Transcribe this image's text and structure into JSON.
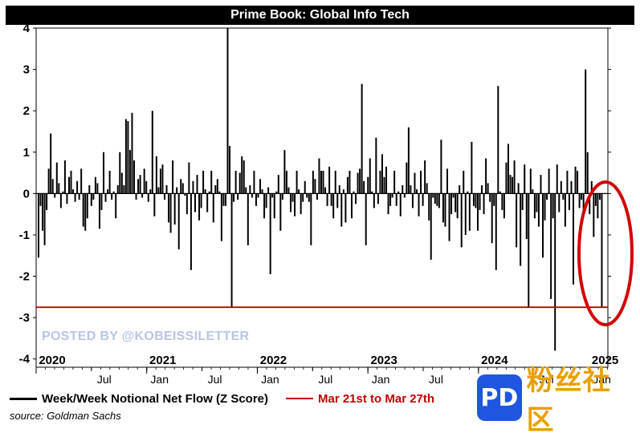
{
  "chart_data": {
    "type": "bar",
    "title": "Prime Book: Global Info Tech",
    "ylim": [
      -4.2,
      4
    ],
    "yticks": [
      4,
      3,
      2,
      1,
      0,
      -1,
      -2,
      -3,
      -4
    ],
    "xlim": [
      2020.0,
      2025.17
    ],
    "year_labels": [
      {
        "label": "2020",
        "x": 2020.0
      },
      {
        "label": "2021",
        "x": 2021.0
      },
      {
        "label": "2022",
        "x": 2022.0
      },
      {
        "label": "2023",
        "x": 2023.0
      },
      {
        "label": "2024",
        "x": 2024.0
      },
      {
        "label": "2025",
        "x": 2025.0
      }
    ],
    "month_labels": [
      {
        "label": "Jul",
        "x": 2020.5
      },
      {
        "label": "Jan",
        "x": 2021.0
      },
      {
        "label": "Jul",
        "x": 2021.5
      },
      {
        "label": "Jan",
        "x": 2022.0
      },
      {
        "label": "Jul",
        "x": 2022.5
      },
      {
        "label": "Jan",
        "x": 2023.0
      },
      {
        "label": "Jul",
        "x": 2023.5
      },
      {
        "label": "Jan",
        "x": 2024.0
      },
      {
        "label": "Jul",
        "x": 2024.5
      },
      {
        "label": "Jan",
        "x": 2025.0
      }
    ],
    "reference_line": {
      "value": -2.75,
      "color": "#c00000",
      "label": "Mar 21st to Mar 27th"
    },
    "series": [
      {
        "name": "Week/Week Notional Net Flow (Z Score)",
        "color": "#000000",
        "values": [
          -1.55,
          -0.3,
          -0.9,
          -1.25,
          -0.4,
          0.6,
          1.45,
          0.35,
          -0.1,
          0.75,
          0.25,
          -0.35,
          0.05,
          0.8,
          -0.25,
          0.4,
          0.55,
          0.1,
          -0.2,
          0.3,
          -0.15,
          0.6,
          -0.8,
          -0.9,
          -0.6,
          0.2,
          -0.3,
          -0.15,
          0.4,
          0.25,
          -0.85,
          -0.4,
          1.0,
          -0.2,
          0.1,
          0.55,
          -0.15,
          0.05,
          -0.6,
          0.2,
          1.0,
          0.5,
          0.2,
          1.8,
          1.75,
          1.05,
          1.95,
          0.8,
          -0.15,
          0.35,
          0.45,
          -0.1,
          0.6,
          0.3,
          -0.2,
          0.1,
          2.0,
          -0.55,
          0.9,
          0.15,
          0.6,
          0.7,
          -0.15,
          0.2,
          -0.7,
          -0.95,
          0.8,
          -0.75,
          0.15,
          -1.35,
          0.35,
          0.25,
          -0.05,
          -0.5,
          0.75,
          -1.85,
          0.3,
          -0.45,
          0.45,
          -0.65,
          -0.35,
          0.55,
          0.1,
          -0.45,
          0.05,
          0.55,
          -0.7,
          0.2,
          0.35,
          0.05,
          -1.15,
          -0.3,
          -0.3,
          4.0,
          1.15,
          -2.75,
          -0.2,
          0.55,
          -0.15,
          0.5,
          0.9,
          0.8,
          0.15,
          -1.25,
          0.2,
          -0.1,
          0.55,
          -0.3,
          -0.1,
          0.35,
          0.1,
          -0.6,
          -0.35,
          0.15,
          -1.95,
          -0.1,
          -0.6,
          0.05,
          0.45,
          -0.9,
          -0.15,
          1.05,
          0.55,
          0.15,
          -0.45,
          -0.2,
          -0.55,
          0.55,
          0.1,
          -0.5,
          -0.2,
          0.3,
          -0.1,
          -0.2,
          -1.25,
          0.55,
          0.35,
          -0.15,
          0.85,
          0.55,
          0.55,
          0.15,
          -0.3,
          0.65,
          -0.3,
          -0.6,
          0.55,
          -0.35,
          0.2,
          -0.8,
          0.1,
          -0.7,
          0.4,
          0.55,
          -0.6,
          0.05,
          -0.25,
          0.5,
          0.6,
          2.65,
          0.3,
          -1.25,
          0.4,
          0.85,
          0.05,
          -0.35,
          1.35,
          -0.25,
          0.55,
          0.95,
          0.4,
          0.65,
          -0.5,
          -0.3,
          -0.1,
          0.55,
          -0.3,
          0.05,
          -0.55,
          0.2,
          -0.1,
          0.75,
          1.6,
          0.2,
          -0.35,
          0.5,
          0.1,
          -0.55,
          0.55,
          -0.3,
          0.8,
          0.25,
          -0.65,
          -1.6,
          -0.1,
          -0.25,
          -0.3,
          -0.35,
          1.3,
          -0.7,
          -0.8,
          0.6,
          -1.15,
          -0.5,
          -0.1,
          -0.45,
          -0.6,
          0.2,
          -1.3,
          0.55,
          -1.0,
          0.05,
          -0.9,
          1.25,
          -0.3,
          -0.35,
          -0.9,
          -0.4,
          0.2,
          -0.5,
          0.85,
          0.25,
          -0.2,
          -1.2,
          -0.3,
          -1.85,
          2.6,
          0.05,
          -0.4,
          -0.6,
          0.75,
          1.2,
          0.45,
          0.4,
          0.8,
          -1.3,
          0.25,
          -1.75,
          -0.4,
          0.7,
          -1.1,
          -2.75,
          0.6,
          0.1,
          -0.6,
          -0.45,
          -0.8,
          0.45,
          -1.55,
          -0.65,
          -0.15,
          0.6,
          -2.55,
          -0.6,
          -3.8,
          0.7,
          -0.45,
          0.3,
          -0.15,
          -0.8,
          0.55,
          -0.4,
          0.3,
          -2.2,
          0.65,
          0.55,
          -0.35,
          -0.15,
          -0.5,
          3.0,
          1.0,
          -0.5,
          0.3,
          -1.05,
          -0.3,
          -0.6,
          -0.15,
          -2.75
        ]
      }
    ]
  },
  "legend": {
    "series_label": "Week/Week Notional Net Flow (Z Score)",
    "reference_label": "Mar 21st to Mar 27th"
  },
  "source": "source: Goldman Sachs",
  "watermark": "POSTED BY @KOBEISSILETTER",
  "badge": {
    "logo_text": "PD",
    "brand_text": "粉丝社区"
  },
  "colors": {
    "bars": "#000000",
    "reference": "#c00000",
    "highlight_circle": "#d40000",
    "watermark": "#b9c4e8",
    "badge_bg": "#1f55e0",
    "badge_text": "#e8a000"
  }
}
